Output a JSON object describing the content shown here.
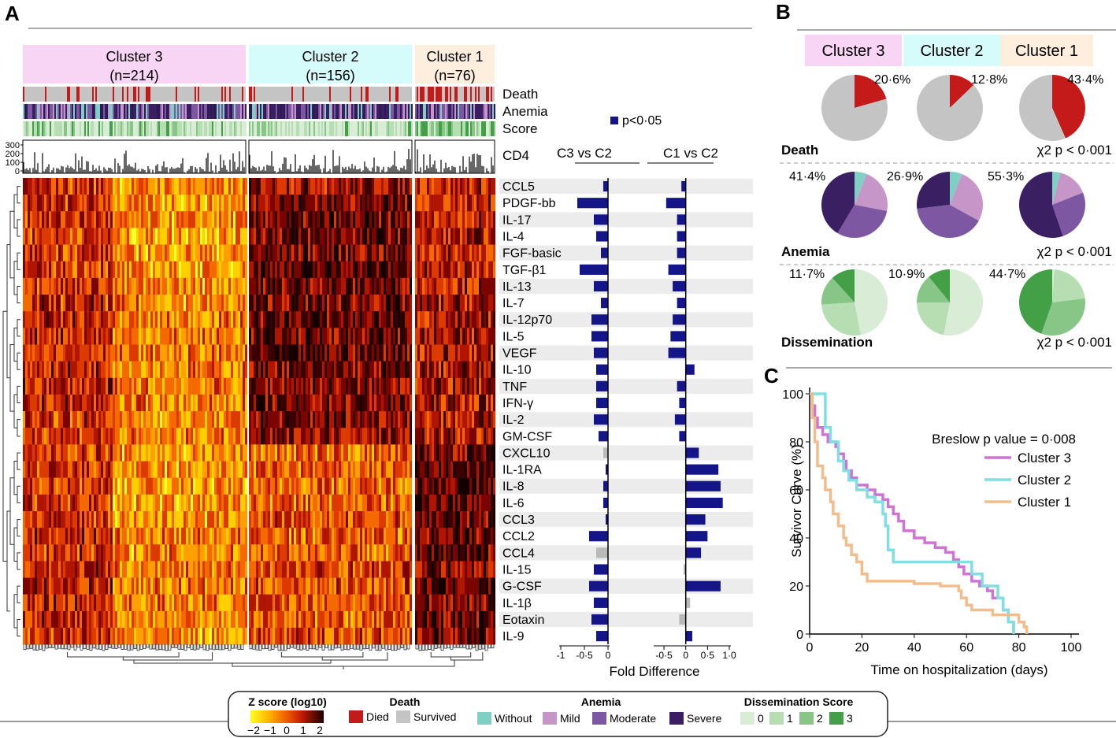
{
  "panels": {
    "a": "A",
    "b": "B",
    "c": "C"
  },
  "colors": {
    "c3": "#f9d5f5",
    "c2": "#d6fbfb",
    "c1": "#fdeedd",
    "died": "#c41a1a",
    "survived": "#c4c4c4",
    "without": "#7fcfc2",
    "mild": "#c796c9",
    "moderate": "#7e57a3",
    "severe": "#3b1f63",
    "d0": "#d8ecd6",
    "d1": "#b6deb2",
    "d2": "#88c687",
    "d3": "#44a046",
    "bar_sig": "#15158a",
    "bar_ns": "#b9b9b9",
    "line_c3": "#cf73d4",
    "line_c2": "#7fdfe1",
    "line_c1": "#f2bd8d"
  },
  "heatmap": {
    "clusters": [
      {
        "id": "c3",
        "name": "Cluster 3",
        "n": "(n=214)"
      },
      {
        "id": "c2",
        "name": "Cluster 2",
        "n": "(n=156)"
      },
      {
        "id": "c1",
        "name": "Cluster 1",
        "n": "(n=76)"
      }
    ],
    "annotation_rows": [
      "Death",
      "Anemia",
      "Score"
    ],
    "cd4_label": "CD4",
    "cd4_ticks": [
      "300",
      "200",
      "100",
      "0"
    ]
  },
  "chart_data": [
    {
      "type": "bar",
      "title": "Fold Difference",
      "legend": "p<0·05",
      "categories": [
        "CCL5",
        "PDGF-bb",
        "IL-17",
        "IL-4",
        "FGF-basic",
        "TGF-β1",
        "IL-13",
        "IL-7",
        "IL-12p70",
        "IL-5",
        "VEGF",
        "IL-10",
        "TNF",
        "IFN-γ",
        "IL-2",
        "GM-CSF",
        "CXCL10",
        "IL-1RA",
        "IL-8",
        "IL-6",
        "CCL3",
        "CCL2",
        "CCL4",
        "IL-15",
        "G-CSF",
        "IL-1β",
        "Eotaxin",
        "IL-9"
      ],
      "series": [
        {
          "name": "C3 vs C2",
          "values": [
            -0.1,
            -0.65,
            -0.3,
            -0.25,
            -0.15,
            -0.6,
            -0.3,
            -0.15,
            -0.35,
            -0.35,
            -0.3,
            -0.25,
            -0.25,
            -0.25,
            -0.3,
            -0.2,
            -0.1,
            -0.05,
            -0.1,
            -0.1,
            -0.05,
            -0.4,
            -0.25,
            -0.3,
            -0.4,
            -0.3,
            -0.35,
            -0.25
          ],
          "significant": [
            true,
            true,
            true,
            true,
            true,
            true,
            true,
            true,
            true,
            true,
            true,
            true,
            true,
            true,
            true,
            true,
            false,
            true,
            true,
            true,
            true,
            true,
            false,
            true,
            true,
            true,
            true,
            true
          ],
          "xticks": [
            "-1",
            "-0·5",
            "0"
          ],
          "xlim": [
            -1,
            0
          ]
        },
        {
          "name": "C1 vs C2",
          "values": [
            -0.1,
            -0.45,
            -0.2,
            -0.2,
            -0.2,
            -0.4,
            -0.3,
            -0.2,
            -0.3,
            -0.35,
            -0.4,
            0.2,
            -0.2,
            -0.15,
            -0.25,
            -0.15,
            0.3,
            0.75,
            0.8,
            0.85,
            0.45,
            0.5,
            0.35,
            -0.05,
            0.8,
            0.1,
            -0.15,
            0.15
          ],
          "significant": [
            true,
            true,
            true,
            true,
            true,
            true,
            true,
            true,
            true,
            true,
            true,
            true,
            true,
            true,
            true,
            true,
            true,
            true,
            true,
            true,
            true,
            true,
            true,
            false,
            true,
            false,
            false,
            true
          ],
          "xticks": [
            "-0·5",
            "0",
            "0·5",
            "1·0"
          ],
          "xlim": [
            -0.7,
            1.0
          ]
        }
      ]
    },
    {
      "type": "pie",
      "columns": [
        "Cluster 3",
        "Cluster 2",
        "Cluster 1"
      ],
      "rows": [
        {
          "name": "Death",
          "stat": "χ2 p < 0·001",
          "labels": [
            "20·6%",
            "12·8%",
            "43·4%"
          ],
          "slices": [
            [
              {
                "k": "died",
                "v": 20.6
              },
              {
                "k": "survived",
                "v": 79.4
              }
            ],
            [
              {
                "k": "died",
                "v": 12.8
              },
              {
                "k": "survived",
                "v": 87.2
              }
            ],
            [
              {
                "k": "died",
                "v": 43.4
              },
              {
                "k": "survived",
                "v": 56.6
              }
            ]
          ]
        },
        {
          "name": "Anemia",
          "stat": "χ2 p < 0·001",
          "labels": [
            "41·4%",
            "26·9%",
            "55·3%"
          ],
          "slices": [
            [
              {
                "k": "without",
                "v": 6
              },
              {
                "k": "mild",
                "v": 22
              },
              {
                "k": "moderate",
                "v": 30.6
              },
              {
                "k": "severe",
                "v": 41.4
              }
            ],
            [
              {
                "k": "without",
                "v": 6
              },
              {
                "k": "mild",
                "v": 27
              },
              {
                "k": "moderate",
                "v": 40.1
              },
              {
                "k": "severe",
                "v": 26.9
              }
            ],
            [
              {
                "k": "without",
                "v": 4
              },
              {
                "k": "mild",
                "v": 15
              },
              {
                "k": "moderate",
                "v": 25.7
              },
              {
                "k": "severe",
                "v": 55.3
              }
            ]
          ]
        },
        {
          "name": "Dissemination",
          "stat": "χ2 p < 0·001",
          "labels": [
            "11·7%",
            "10·9%",
            "44·7%"
          ],
          "slices": [
            [
              {
                "k": "d0",
                "v": 47
              },
              {
                "k": "d1",
                "v": 27
              },
              {
                "k": "d2",
                "v": 14.3
              },
              {
                "k": "d3",
                "v": 11.7
              }
            ],
            [
              {
                "k": "d0",
                "v": 53
              },
              {
                "k": "d1",
                "v": 22
              },
              {
                "k": "d2",
                "v": 14.1
              },
              {
                "k": "d3",
                "v": 10.9
              }
            ],
            [
              {
                "k": "d0",
                "v": 1
              },
              {
                "k": "d1",
                "v": 22
              },
              {
                "k": "d2",
                "v": 32.3
              },
              {
                "k": "d3",
                "v": 44.7
              }
            ]
          ]
        }
      ]
    },
    {
      "type": "line",
      "subtype": "step",
      "title": "Breslow p value = 0·008",
      "xlabel": "Time on hospitalization (days)",
      "ylabel": "Survivor Curve (%)",
      "xlim": [
        0,
        100
      ],
      "ylim": [
        0,
        100
      ],
      "xticks": [
        0,
        20,
        40,
        60,
        80,
        100
      ],
      "yticks": [
        0,
        20,
        40,
        60,
        80,
        100
      ],
      "series": [
        {
          "name": "Cluster 3",
          "color": "line_c3",
          "x": [
            0,
            1,
            2,
            3,
            5,
            7,
            8,
            10,
            11,
            13,
            14,
            16,
            18,
            22,
            25,
            28,
            30,
            32,
            34,
            36,
            40,
            44,
            48,
            52,
            55,
            57,
            59,
            62,
            65,
            68,
            70,
            74,
            76,
            78
          ],
          "y": [
            100,
            95,
            90,
            86,
            83,
            80,
            80,
            78,
            75,
            72,
            68,
            65,
            62,
            60,
            58,
            56,
            53,
            50,
            47,
            43,
            40,
            38,
            36,
            34,
            31,
            28,
            25,
            22,
            20,
            18,
            15,
            10,
            5,
            0
          ]
        },
        {
          "name": "Cluster 2",
          "color": "line_c2",
          "x": [
            0,
            4,
            6,
            8,
            11,
            13,
            15,
            18,
            22,
            25,
            28,
            29,
            30,
            32,
            60,
            62,
            66,
            72,
            74,
            76,
            78
          ],
          "y": [
            100,
            100,
            86,
            80,
            72,
            68,
            64,
            60,
            57,
            55,
            50,
            45,
            35,
            30,
            30,
            25,
            20,
            15,
            10,
            5,
            0
          ]
        },
        {
          "name": "Cluster 1",
          "color": "line_c1",
          "x": [
            0,
            1,
            2,
            3,
            5,
            6,
            8,
            9,
            11,
            13,
            14,
            16,
            18,
            20,
            22,
            34,
            40,
            50,
            57,
            58,
            60,
            62,
            70,
            80,
            82,
            83
          ],
          "y": [
            100,
            90,
            80,
            70,
            65,
            60,
            55,
            50,
            45,
            40,
            37,
            33,
            30,
            25,
            22,
            22,
            21,
            20,
            18,
            15,
            12,
            10,
            8,
            5,
            3,
            0
          ]
        }
      ]
    }
  ],
  "legend": {
    "z_title": "Z score (log10)",
    "z_ticks": [
      "−2",
      "−1",
      "0",
      "1",
      "2"
    ],
    "death_title": "Death",
    "death_items": [
      {
        "k": "died",
        "label": "Died"
      },
      {
        "k": "survived",
        "label": "Survived"
      }
    ],
    "anemia_title": "Anemia",
    "anemia_items": [
      {
        "k": "without",
        "label": "Without"
      },
      {
        "k": "mild",
        "label": "Mild"
      },
      {
        "k": "moderate",
        "label": "Moderate"
      },
      {
        "k": "severe",
        "label": "Severe"
      }
    ],
    "diss_title": "Dissemination Score",
    "diss_items": [
      {
        "k": "d0",
        "label": "0"
      },
      {
        "k": "d1",
        "label": "1"
      },
      {
        "k": "d2",
        "label": "2"
      },
      {
        "k": "d3",
        "label": "3"
      }
    ]
  }
}
